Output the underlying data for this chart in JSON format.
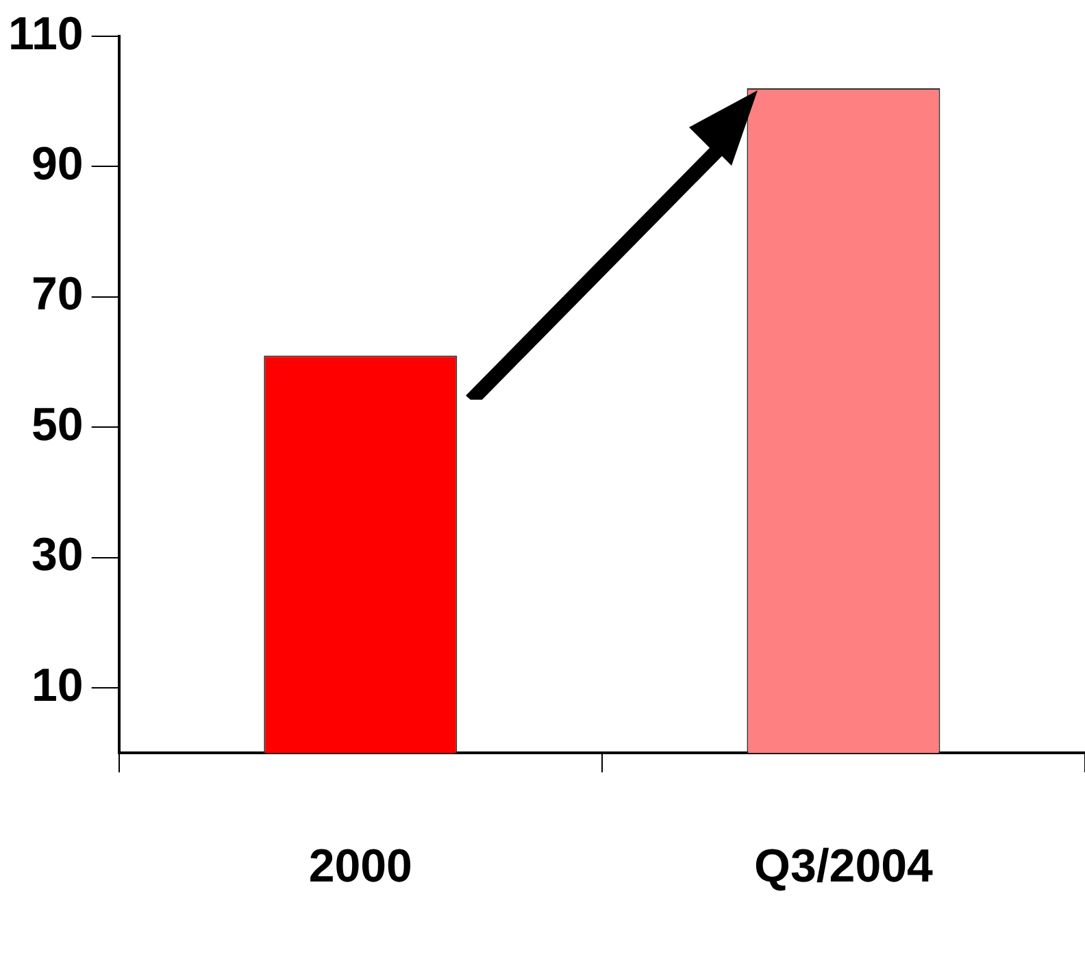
{
  "chart_data": {
    "type": "bar",
    "categories": [
      "2000",
      "Q3/2004"
    ],
    "values": [
      61,
      102
    ],
    "colors": [
      "#ff0000",
      "#ff8080"
    ],
    "ylim": [
      0,
      110
    ],
    "yticks": [
      10,
      30,
      50,
      70,
      90,
      110
    ],
    "grid": false,
    "legend": false
  }
}
